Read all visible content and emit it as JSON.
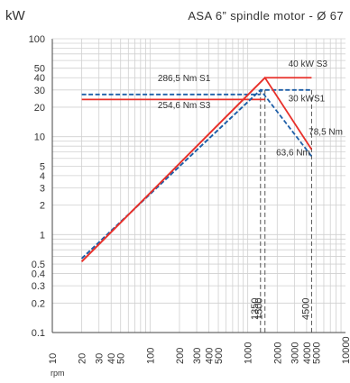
{
  "chart_data": {
    "type": "line",
    "title": "ASA 6” spindle motor - Ø 67",
    "ylabel": "kW",
    "xlabel": "rpm",
    "x_scale": "log",
    "y_scale": "log",
    "xlim": [
      10,
      10000
    ],
    "ylim": [
      0.1,
      100
    ],
    "grid": true,
    "colors": {
      "s1": "#1f5fa8",
      "s3": "#e8302a",
      "marker": "#555555",
      "grid": "#d0d0d0"
    },
    "y_ticks": [
      "0.1",
      "0.2",
      "0.3",
      "0.4",
      "0.5",
      "1",
      "2",
      "3",
      "4",
      "5",
      "10",
      "20",
      "30",
      "40",
      "50",
      "100"
    ],
    "x_ticks": [
      "10",
      "20",
      "30",
      "40",
      "50",
      "100",
      "200",
      "300",
      "400",
      "500",
      "1000",
      "2000",
      "3000",
      "4000",
      "5000",
      "10000"
    ],
    "series": [
      {
        "key": "s1",
        "style": "dashed",
        "x": [
          20,
          1350,
          4500
        ],
        "y": [
          0.57,
          30,
          6.3
        ]
      },
      {
        "key": "s1",
        "style": "dashed",
        "x": [
          20,
          1350,
          4500
        ],
        "y": [
          0.57,
          30,
          30
        ]
      },
      {
        "key": "s3",
        "style": "solid",
        "x": [
          20,
          1500,
          4500
        ],
        "y": [
          0.53,
          40,
          7.4
        ]
      },
      {
        "key": "s3",
        "style": "solid",
        "x": [
          20,
          1500,
          4500
        ],
        "y": [
          0.53,
          40,
          40
        ]
      }
    ],
    "torque_lines": [
      {
        "key": "s1",
        "style": "dashed",
        "x": [
          20,
          1350
        ],
        "y": [
          27,
          27
        ]
      },
      {
        "key": "s3",
        "style": "solid",
        "x": [
          20,
          1500
        ],
        "y": [
          24,
          24
        ]
      }
    ],
    "markers": [
      {
        "x": 1350,
        "label": "1350"
      },
      {
        "x": 1500,
        "label": "1500"
      },
      {
        "x": 4500,
        "label": "4500"
      }
    ],
    "annotations": [
      {
        "text": "286,5 Nm S1",
        "x": 120,
        "y": 37
      },
      {
        "text": "254,6 Nm S3",
        "x": 120,
        "y": 19.5
      },
      {
        "text": "40 kW S3",
        "x": 2600,
        "y": 52
      },
      {
        "text": "30 kWS1",
        "x": 2600,
        "y": 23
      },
      {
        "text": "78,5 Nm",
        "x": 4200,
        "y": 10.5
      },
      {
        "text": "63,6 Nm",
        "x": 1950,
        "y": 6.4
      }
    ]
  }
}
